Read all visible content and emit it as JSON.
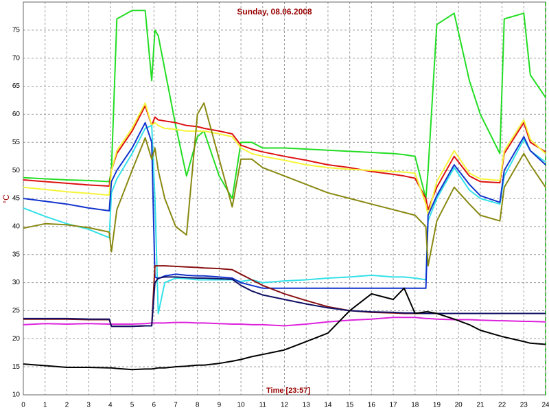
{
  "chart_data": {
    "type": "line",
    "title": "Sunday, 08.06.2008",
    "x_label": "Time [23:57]",
    "y_label": "°C",
    "x": [
      0,
      1,
      2,
      3,
      3.95,
      4.05,
      4.3,
      5,
      5.6,
      5.9,
      6.05,
      6.2,
      6.5,
      7,
      7.5,
      8,
      8.3,
      9,
      9.6,
      10,
      10.5,
      11,
      12,
      13,
      14,
      15,
      16,
      17,
      17.5,
      18,
      18.5,
      18.6,
      19,
      19.8,
      20.5,
      21,
      21.9,
      22.1,
      23,
      23.3,
      24
    ],
    "xlim": [
      0,
      24
    ],
    "xticks": [
      0,
      1,
      2,
      3,
      4,
      5,
      6,
      7,
      8,
      9,
      10,
      11,
      12,
      13,
      14,
      15,
      16,
      17,
      18,
      19,
      20,
      21,
      22,
      23,
      24
    ],
    "ylim": [
      10,
      80
    ],
    "yticks": [
      10,
      15,
      20,
      25,
      30,
      35,
      40,
      45,
      50,
      55,
      60,
      65,
      70,
      75
    ],
    "grid": true,
    "series": [
      {
        "color": "#22dd22",
        "values": [
          48.7,
          48.5,
          48.3,
          48.2,
          48,
          50,
          77,
          78.5,
          78.5,
          66,
          75,
          74,
          68,
          58,
          49,
          56,
          57,
          49,
          45,
          55,
          55,
          54,
          54,
          53.8,
          53.6,
          53.4,
          53.2,
          53,
          52.8,
          52.5,
          45,
          50,
          76,
          78,
          66,
          60,
          53,
          77,
          78,
          67,
          63
        ]
      },
      {
        "color": "#dd1111",
        "values": [
          48.3,
          48,
          47.7,
          47.4,
          47.2,
          50,
          53,
          57,
          61.5,
          58,
          59.5,
          59,
          58.8,
          58.5,
          58,
          57.8,
          57.5,
          57,
          56.5,
          54.5,
          53.8,
          53.3,
          52.5,
          51.8,
          51,
          50.5,
          49.8,
          49.3,
          49,
          48.6,
          45,
          43,
          47,
          52.5,
          49,
          48,
          47.8,
          53,
          58.5,
          55,
          53.3
        ]
      },
      {
        "color": "#f5f53a",
        "values": [
          47,
          46.6,
          46.2,
          45.9,
          45.6,
          50,
          53.5,
          57.5,
          62,
          58,
          58.5,
          58,
          57.5,
          57.3,
          57,
          57,
          57,
          56.5,
          56,
          54,
          53,
          52.5,
          51.8,
          51,
          50.5,
          50.2,
          50,
          49.8,
          49.7,
          49.5,
          44,
          42,
          48,
          53.5,
          49.5,
          48.5,
          48.2,
          53.5,
          59,
          55.5,
          53
        ]
      },
      {
        "color": "#33e0e8",
        "values": [
          43.3,
          41.8,
          40.5,
          39.5,
          38,
          46,
          48.5,
          53,
          57.5,
          58,
          45,
          24.5,
          30,
          30.8,
          30.7,
          30.5,
          30.5,
          30.5,
          30.5,
          30.2,
          30.5,
          30,
          30.3,
          30.5,
          30.8,
          31,
          31.3,
          31,
          31,
          30.8,
          30.5,
          41,
          45,
          50.5,
          46.5,
          45,
          44,
          49,
          55.5,
          53.5,
          51.5
        ]
      },
      {
        "color": "#1133cc",
        "values": [
          45,
          44.5,
          44,
          43.3,
          42.8,
          48,
          50,
          54,
          58.5,
          55,
          31,
          30.7,
          31.2,
          31.5,
          31.3,
          31.2,
          31.2,
          31,
          30.8,
          30,
          29.5,
          29,
          29,
          29,
          29,
          29,
          29,
          29,
          29,
          29,
          29,
          42,
          45.5,
          51,
          47.5,
          45.5,
          44.3,
          50,
          56,
          53.5,
          51
        ]
      },
      {
        "color": "#888811",
        "values": [
          39.7,
          40.5,
          40.3,
          39.8,
          39,
          35.5,
          43,
          50,
          55.8,
          52,
          54,
          50,
          45,
          40,
          38.5,
          60,
          62,
          52,
          43.5,
          52,
          52,
          50.5,
          49,
          47.5,
          46,
          45,
          44,
          43,
          42.5,
          42,
          40,
          33,
          41,
          47,
          44,
          42,
          41,
          47,
          53,
          51,
          47
        ]
      },
      {
        "color": "#dd22dd",
        "values": [
          22.5,
          22.7,
          22.6,
          22.7,
          22.6,
          22.6,
          22.6,
          22.6,
          22.7,
          22.8,
          22.8,
          22.8,
          22.8,
          22.9,
          22.9,
          22.8,
          22.8,
          22.7,
          22.6,
          22.6,
          22.5,
          22.5,
          22.3,
          22.6,
          23,
          23.3,
          23.5,
          23.8,
          23.8,
          23.8,
          23.6,
          23.6,
          23.5,
          23.4,
          23.4,
          23.3,
          23.2,
          23.2,
          23.1,
          23.1,
          23
        ]
      },
      {
        "color": "#881111",
        "values": [
          23.5,
          23.5,
          23.5,
          23.4,
          23.4,
          22.2,
          22.2,
          22.2,
          22.3,
          22.3,
          33,
          33,
          33,
          32.9,
          32.8,
          32.7,
          32.6,
          32.5,
          32.3,
          31.5,
          30.5,
          29.5,
          28,
          26.8,
          25.7,
          25,
          24.7,
          24.6,
          24.5,
          24.5,
          24.5,
          24.5,
          24.5,
          24.5,
          24.5,
          24.5,
          24.5,
          24.5,
          24.5,
          24.5,
          24.5
        ]
      },
      {
        "color": "#111166",
        "values": [
          23.6,
          23.6,
          23.6,
          23.5,
          23.5,
          22.2,
          22.2,
          22.2,
          22.3,
          22.3,
          30,
          30.8,
          31,
          31,
          30.9,
          30.8,
          30.8,
          30.7,
          30.6,
          29.5,
          28.5,
          27.8,
          27,
          26.2,
          25.5,
          25,
          24.8,
          24.7,
          24.6,
          24.6,
          24.5,
          24.5,
          24.5,
          24.5,
          24.5,
          24.5,
          24.5,
          24.5,
          24.5,
          24.5,
          24.5
        ]
      },
      {
        "color": "#000000",
        "values": [
          15.5,
          15.2,
          14.9,
          14.9,
          14.8,
          14.8,
          14.7,
          14.5,
          14.6,
          14.6,
          14.7,
          14.8,
          14.8,
          15,
          15.1,
          15.3,
          15.3,
          15.6,
          16,
          16.3,
          16.8,
          17.2,
          18,
          19.5,
          21,
          25,
          28,
          27,
          29,
          24.5,
          24.8,
          24.8,
          24.5,
          23.5,
          22.5,
          21.5,
          20.5,
          20.3,
          19.5,
          19.2,
          19
        ]
      }
    ]
  }
}
